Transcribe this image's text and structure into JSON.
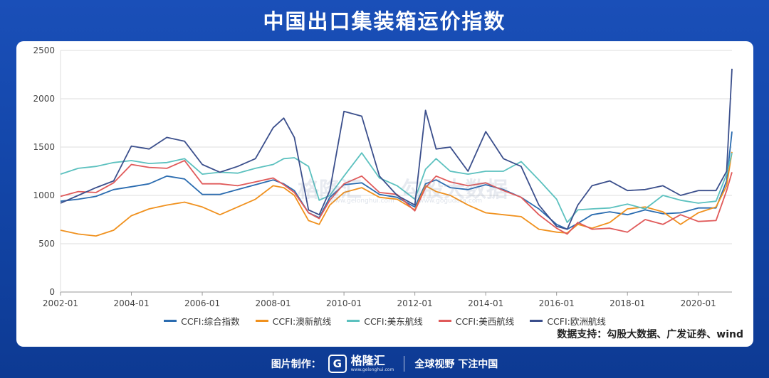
{
  "page": {
    "title": "中国出口集装箱运价指数",
    "source": "数据支持：勾股大数据、广发证券、wind"
  },
  "footer": {
    "made_by": "图片制作：",
    "logo_name": "格隆汇",
    "logo_sub": "www.gelonghui.com",
    "slogan": "全球视野 下注中国"
  },
  "watermark": {
    "left_name": "格隆汇",
    "left_sub": "www.gelonghui.com",
    "right_name": "勾股大数据",
    "right_sub": "www.gogudata.com"
  },
  "chart_data": {
    "type": "line",
    "title": "中国出口集装箱运价指数",
    "xlabel": "",
    "ylabel": "",
    "xlim": [
      2002.0,
      2020.95
    ],
    "ylim": [
      0,
      2500
    ],
    "yticks": [
      0,
      500,
      1000,
      1500,
      2000,
      2500
    ],
    "xticks": [
      {
        "label": "2002-01",
        "x": 2002.0
      },
      {
        "label": "2004-01",
        "x": 2004.0
      },
      {
        "label": "2006-01",
        "x": 2006.0
      },
      {
        "label": "2008-01",
        "x": 2008.0
      },
      {
        "label": "2010-01",
        "x": 2010.0
      },
      {
        "label": "2012-01",
        "x": 2012.0
      },
      {
        "label": "2014-01",
        "x": 2014.0
      },
      {
        "label": "2016-01",
        "x": 2016.0
      },
      {
        "label": "2018-01",
        "x": 2018.0
      },
      {
        "label": "2020-01",
        "x": 2020.0
      }
    ],
    "grid": "horizontal",
    "legend_position": "bottom",
    "x": [
      2002.0,
      2002.5,
      2003.0,
      2003.5,
      2004.0,
      2004.5,
      2005.0,
      2005.5,
      2006.0,
      2006.5,
      2007.0,
      2007.5,
      2008.0,
      2008.3,
      2008.6,
      2009.0,
      2009.3,
      2009.6,
      2010.0,
      2010.5,
      2011.0,
      2011.5,
      2012.0,
      2012.3,
      2012.6,
      2013.0,
      2013.5,
      2014.0,
      2014.5,
      2015.0,
      2015.5,
      2016.0,
      2016.3,
      2016.6,
      2017.0,
      2017.5,
      2018.0,
      2018.5,
      2019.0,
      2019.5,
      2020.0,
      2020.5,
      2020.8,
      2020.95
    ],
    "series": [
      {
        "name": "CCFI:综合指数",
        "color": "#2b6cb0",
        "values": [
          940,
          960,
          990,
          1060,
          1090,
          1120,
          1200,
          1170,
          1010,
          1010,
          1060,
          1110,
          1160,
          1120,
          1050,
          820,
          770,
          980,
          1110,
          1130,
          1010,
          980,
          880,
          1120,
          1160,
          1080,
          1060,
          1110,
          1060,
          980,
          860,
          700,
          650,
          710,
          800,
          830,
          800,
          850,
          810,
          820,
          870,
          870,
          1150,
          1660
        ]
      },
      {
        "name": "CCFI:澳新航线",
        "color": "#f0911e",
        "values": [
          640,
          600,
          580,
          640,
          790,
          860,
          900,
          930,
          880,
          800,
          880,
          960,
          1100,
          1080,
          1000,
          740,
          700,
          900,
          1030,
          1080,
          980,
          960,
          850,
          1100,
          1040,
          1000,
          900,
          820,
          800,
          780,
          650,
          620,
          610,
          700,
          660,
          720,
          860,
          880,
          830,
          700,
          820,
          880,
          1100,
          1450
        ]
      },
      {
        "name": "CCFI:美东航线",
        "color": "#5cc1bf",
        "values": [
          1220,
          1280,
          1300,
          1340,
          1360,
          1330,
          1340,
          1380,
          1220,
          1240,
          1230,
          1280,
          1320,
          1380,
          1390,
          1300,
          950,
          1000,
          1200,
          1440,
          1180,
          1100,
          960,
          1270,
          1380,
          1250,
          1220,
          1250,
          1250,
          1350,
          1160,
          960,
          720,
          850,
          860,
          870,
          910,
          860,
          1000,
          950,
          920,
          940,
          1220,
          1440
        ]
      },
      {
        "name": "CCFI:美西航线",
        "color": "#e05a5a",
        "values": [
          990,
          1040,
          1030,
          1130,
          1320,
          1290,
          1280,
          1360,
          1120,
          1120,
          1100,
          1140,
          1180,
          1110,
          1030,
          820,
          760,
          950,
          1120,
          1200,
          1030,
          1010,
          840,
          1080,
          1200,
          1140,
          1100,
          1130,
          1050,
          980,
          800,
          660,
          600,
          720,
          650,
          660,
          620,
          750,
          700,
          800,
          730,
          740,
          1050,
          1240
        ]
      },
      {
        "name": "CCFI:欧洲航线",
        "color": "#3b4f8c",
        "values": [
          920,
          1000,
          1080,
          1150,
          1510,
          1480,
          1600,
          1560,
          1320,
          1240,
          1300,
          1380,
          1700,
          1800,
          1600,
          850,
          800,
          1050,
          1870,
          1820,
          1200,
          1000,
          900,
          1880,
          1480,
          1500,
          1250,
          1660,
          1380,
          1300,
          900,
          680,
          650,
          900,
          1100,
          1150,
          1050,
          1060,
          1100,
          1000,
          1050,
          1050,
          1250,
          2310
        ]
      }
    ]
  }
}
